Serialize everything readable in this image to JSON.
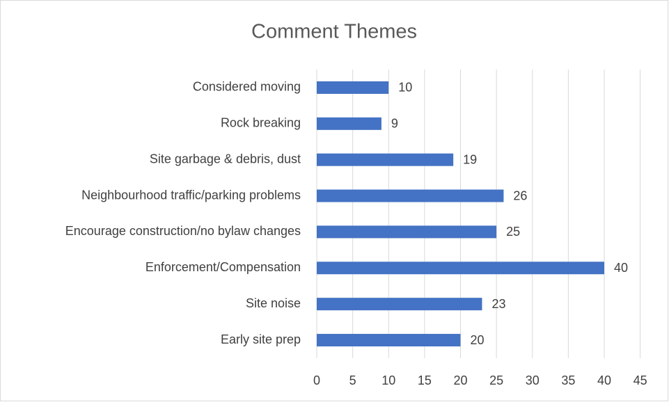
{
  "chart_data": {
    "type": "barh",
    "title": "Comment Themes",
    "categories": [
      "Considered moving",
      "Rock breaking",
      "Site garbage & debris, dust",
      "Neighbourhood traffic/parking problems",
      "Encourage construction/no bylaw changes",
      "Enforcement/Compensation",
      "Site noise",
      "Early site prep"
    ],
    "values": [
      10,
      9,
      19,
      26,
      25,
      40,
      23,
      20
    ],
    "color": "#4472c4",
    "xlim": [
      0,
      45
    ],
    "xticks": [
      0,
      5,
      10,
      15,
      20,
      25,
      30,
      35,
      40,
      45
    ],
    "grid": true
  }
}
